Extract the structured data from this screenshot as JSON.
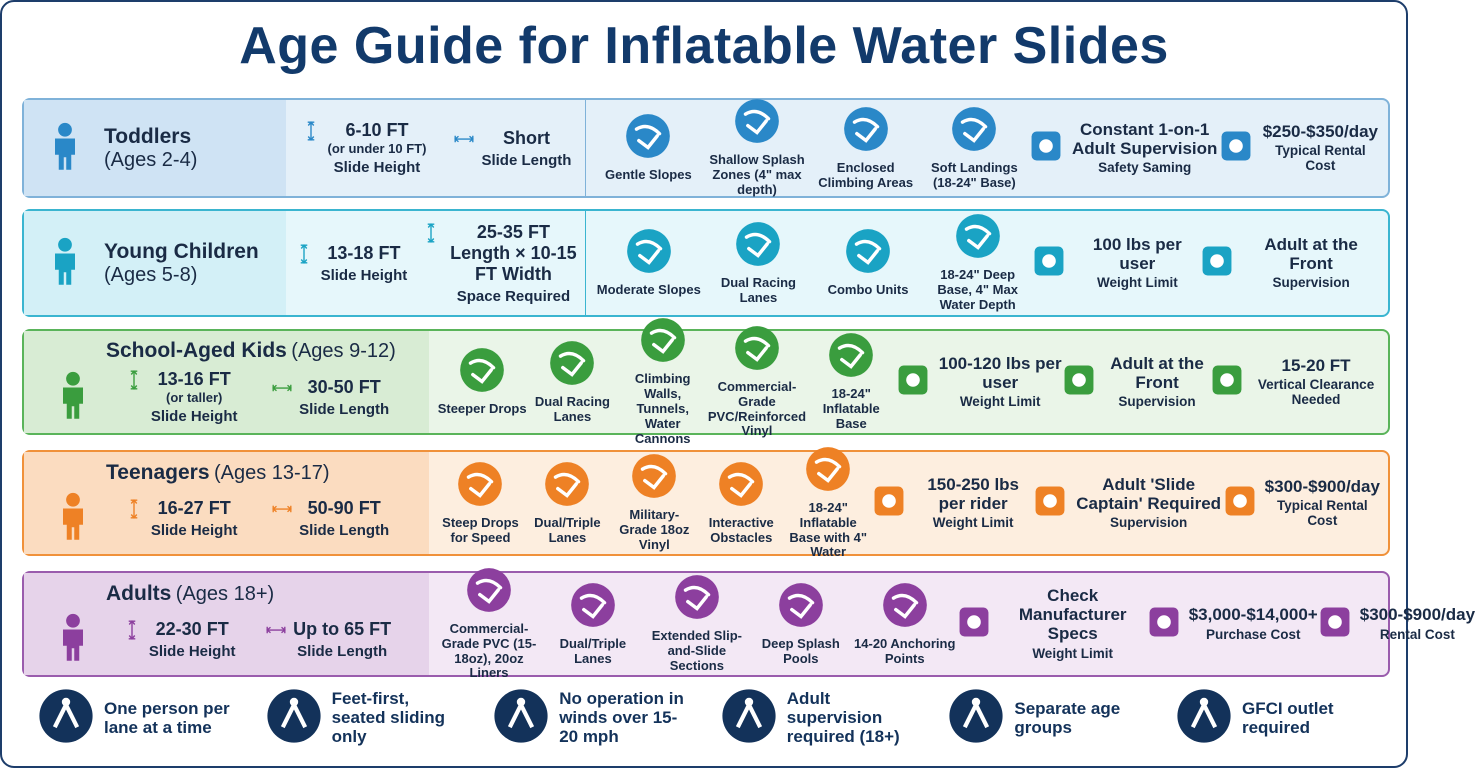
{
  "title": "Age Guide for Inflatable Water Slides",
  "rows": [
    {
      "name": "Toddlers",
      "ages": "(Ages 2-4)",
      "specs": [
        {
          "value": "6-10 FT",
          "sub": "(or under 10 FT)",
          "label": "Slide Height"
        },
        {
          "value": "Short",
          "label": "Slide Length"
        }
      ],
      "features": [
        "Gentle Slopes",
        "Shallow Splash Zones (4\" max depth)",
        "Enclosed Climbing Areas",
        "Soft Landings (18-24\" Base)"
      ],
      "extras": [
        {
          "value": "Constant 1-on-1 Adult Supervision",
          "label": "Safety Saming"
        },
        {
          "value": "$250-$350/day",
          "label": "Typical Rental Cost"
        }
      ]
    },
    {
      "name": "Young Children",
      "ages": "(Ages 5-8)",
      "specs": [
        {
          "value": "13-18 FT",
          "label": "Slide Height"
        },
        {
          "value": "25-35 FT Length × 10-15 FT Width",
          "label": "Space Required"
        }
      ],
      "features": [
        "Moderate Slopes",
        "Dual Racing Lanes",
        "Combo Units",
        "18-24\" Deep Base, 4\" Max Water Depth"
      ],
      "extras": [
        {
          "value": "100 lbs per user",
          "label": "Weight Limit"
        },
        {
          "value": "Adult at the Front",
          "label": "Supervision"
        }
      ]
    },
    {
      "name": "School-Aged Kids",
      "ages": "(Ages 9-12)",
      "specs": [
        {
          "value": "13-16 FT",
          "sub": "(or taller)",
          "label": "Slide Height"
        },
        {
          "value": "30-50 FT",
          "label": "Slide Length"
        }
      ],
      "features": [
        "Steeper Drops",
        "Dual Racing Lanes",
        "Climbing Walls, Tunnels, Water Cannons",
        "Commercial-Grade PVC/Reinforced Vinyl",
        "18-24\" Inflatable Base"
      ],
      "extras": [
        {
          "value": "100-120 lbs per user",
          "label": "Weight Limit"
        },
        {
          "value": "Adult at the Front",
          "label": "Supervision"
        },
        {
          "value": "15-20 FT",
          "label": "Vertical Clearance Needed"
        }
      ]
    },
    {
      "name": "Teenagers",
      "ages": "(Ages 13-17)",
      "specs": [
        {
          "value": "16-27 FT",
          "label": "Slide Height"
        },
        {
          "value": "50-90 FT",
          "label": "Slide Length"
        }
      ],
      "features": [
        "Steep Drops for Speed",
        "Dual/Triple Lanes",
        "Military-Grade 18oz Vinyl",
        "Interactive Obstacles",
        "18-24\" Inflatable Base with 4\" Water"
      ],
      "extras": [
        {
          "value": "150-250 lbs per rider",
          "label": "Weight Limit"
        },
        {
          "value": "Adult 'Slide Captain' Required",
          "label": "Supervision"
        },
        {
          "value": "$300-$900/day",
          "label": "Typical Rental Cost"
        }
      ]
    },
    {
      "name": "Adults",
      "ages": "(Ages 18+)",
      "specs": [
        {
          "value": "22-30 FT",
          "label": "Slide Height"
        },
        {
          "value": "Up to 65 FT",
          "label": "Slide Length"
        }
      ],
      "features": [
        "Commercial-Grade PVC (15-18oz), 20oz Liners",
        "Dual/Triple Lanes",
        "Extended Slip-and-Slide Sections",
        "Deep Splash Pools",
        "14-20 Anchoring Points"
      ],
      "extras": [
        {
          "value": "Check Manufacturer Specs",
          "label": "Weight Limit"
        },
        {
          "value": "$3,000-$14,000+",
          "label": "Purchase Cost"
        },
        {
          "value": "$300-$900/day",
          "label": "Rental Cost"
        }
      ]
    }
  ],
  "rules": [
    "One person per lane at a time",
    "Feet-first, seated sliding only",
    "No operation in winds over 15-20 mph",
    "Adult supervision required (18+)",
    "Separate age groups",
    "GFCI outlet required"
  ]
}
